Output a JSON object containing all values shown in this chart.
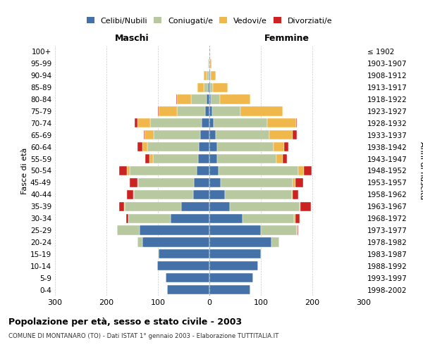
{
  "age_groups": [
    "0-4",
    "5-9",
    "10-14",
    "15-19",
    "20-24",
    "25-29",
    "30-34",
    "35-39",
    "40-44",
    "45-49",
    "50-54",
    "55-59",
    "60-64",
    "65-69",
    "70-74",
    "75-79",
    "80-84",
    "85-89",
    "90-94",
    "95-99",
    "100+"
  ],
  "birth_years": [
    "1998-2002",
    "1993-1997",
    "1988-1992",
    "1983-1987",
    "1978-1982",
    "1973-1977",
    "1968-1972",
    "1963-1967",
    "1958-1962",
    "1953-1957",
    "1948-1952",
    "1943-1947",
    "1938-1942",
    "1933-1937",
    "1928-1932",
    "1923-1927",
    "1918-1922",
    "1913-1917",
    "1908-1912",
    "1903-1907",
    "≤ 1902"
  ],
  "maschi": {
    "celibi": [
      82,
      85,
      102,
      98,
      130,
      135,
      75,
      55,
      32,
      30,
      25,
      22,
      20,
      18,
      15,
      8,
      5,
      3,
      1,
      0,
      0
    ],
    "coniugati": [
      0,
      0,
      0,
      2,
      10,
      45,
      82,
      110,
      115,
      108,
      130,
      88,
      100,
      90,
      100,
      55,
      30,
      8,
      4,
      1,
      0
    ],
    "vedovi": [
      0,
      0,
      0,
      0,
      0,
      0,
      0,
      1,
      1,
      2,
      5,
      7,
      10,
      18,
      25,
      35,
      28,
      12,
      6,
      2,
      0
    ],
    "divorziati": [
      0,
      0,
      0,
      0,
      0,
      0,
      5,
      10,
      12,
      15,
      15,
      8,
      10,
      2,
      5,
      2,
      2,
      0,
      0,
      0,
      0
    ]
  },
  "femmine": {
    "nubili": [
      80,
      85,
      95,
      100,
      120,
      100,
      65,
      40,
      30,
      22,
      18,
      15,
      15,
      12,
      8,
      5,
      3,
      2,
      1,
      0,
      0
    ],
    "coniugate": [
      0,
      0,
      0,
      2,
      15,
      70,
      100,
      135,
      130,
      140,
      155,
      115,
      110,
      105,
      105,
      55,
      18,
      5,
      2,
      1,
      0
    ],
    "vedove": [
      0,
      0,
      0,
      0,
      0,
      1,
      2,
      2,
      2,
      5,
      10,
      12,
      20,
      45,
      55,
      82,
      58,
      28,
      9,
      3,
      0
    ],
    "divorziate": [
      0,
      0,
      0,
      0,
      0,
      2,
      8,
      20,
      10,
      15,
      15,
      8,
      8,
      8,
      2,
      1,
      1,
      0,
      0,
      0,
      0
    ]
  },
  "colors": {
    "celibi": "#4472a8",
    "coniugati": "#b8c9a0",
    "vedovi": "#f0b84a",
    "divorziati": "#cc2222"
  },
  "title": "Popolazione per età, sesso e stato civile - 2003",
  "subtitle": "COMUNE DI MONTANARO (TO) - Dati ISTAT 1° gennaio 2003 - Elaborazione TUTTITALIA.IT",
  "xlabel_left": "Maschi",
  "xlabel_right": "Femmine",
  "ylabel_left": "Fasce di età",
  "ylabel_right": "Anni di nascita",
  "xlim": 300,
  "legend_labels": [
    "Celibi/Nubili",
    "Coniugati/e",
    "Vedovi/e",
    "Divorziati/e"
  ],
  "bg_color": "#ffffff",
  "grid_color": "#cccccc"
}
